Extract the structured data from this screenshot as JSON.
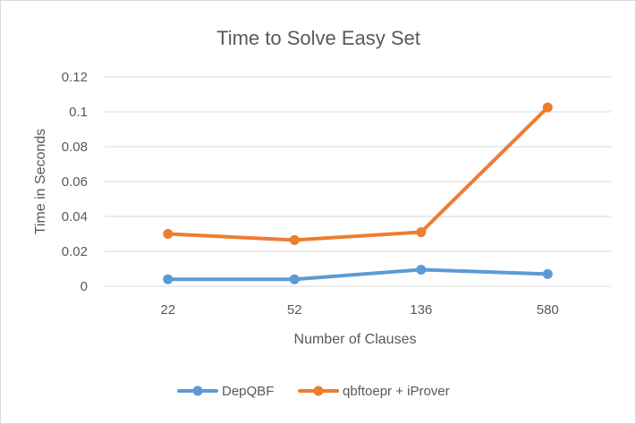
{
  "chart_data": {
    "type": "line",
    "title": "Time to Solve Easy Set",
    "xlabel": "Number of Clauses",
    "ylabel": "Time in Seconds",
    "categories": [
      "22",
      "52",
      "136",
      "580"
    ],
    "ylim": [
      0,
      0.12
    ],
    "yticks": [
      "0",
      "0.02",
      "0.04",
      "0.06",
      "0.08",
      "0.1",
      "0.12"
    ],
    "grid": true,
    "legend_position": "bottom",
    "series": [
      {
        "name": "DepQBF",
        "color": "#5b9bd5",
        "values": [
          0.004,
          0.004,
          0.0095,
          0.007
        ]
      },
      {
        "name": "qbftoepr + iProver",
        "color": "#ed7d31",
        "values": [
          0.03,
          0.0265,
          0.031,
          0.1025
        ]
      }
    ]
  }
}
